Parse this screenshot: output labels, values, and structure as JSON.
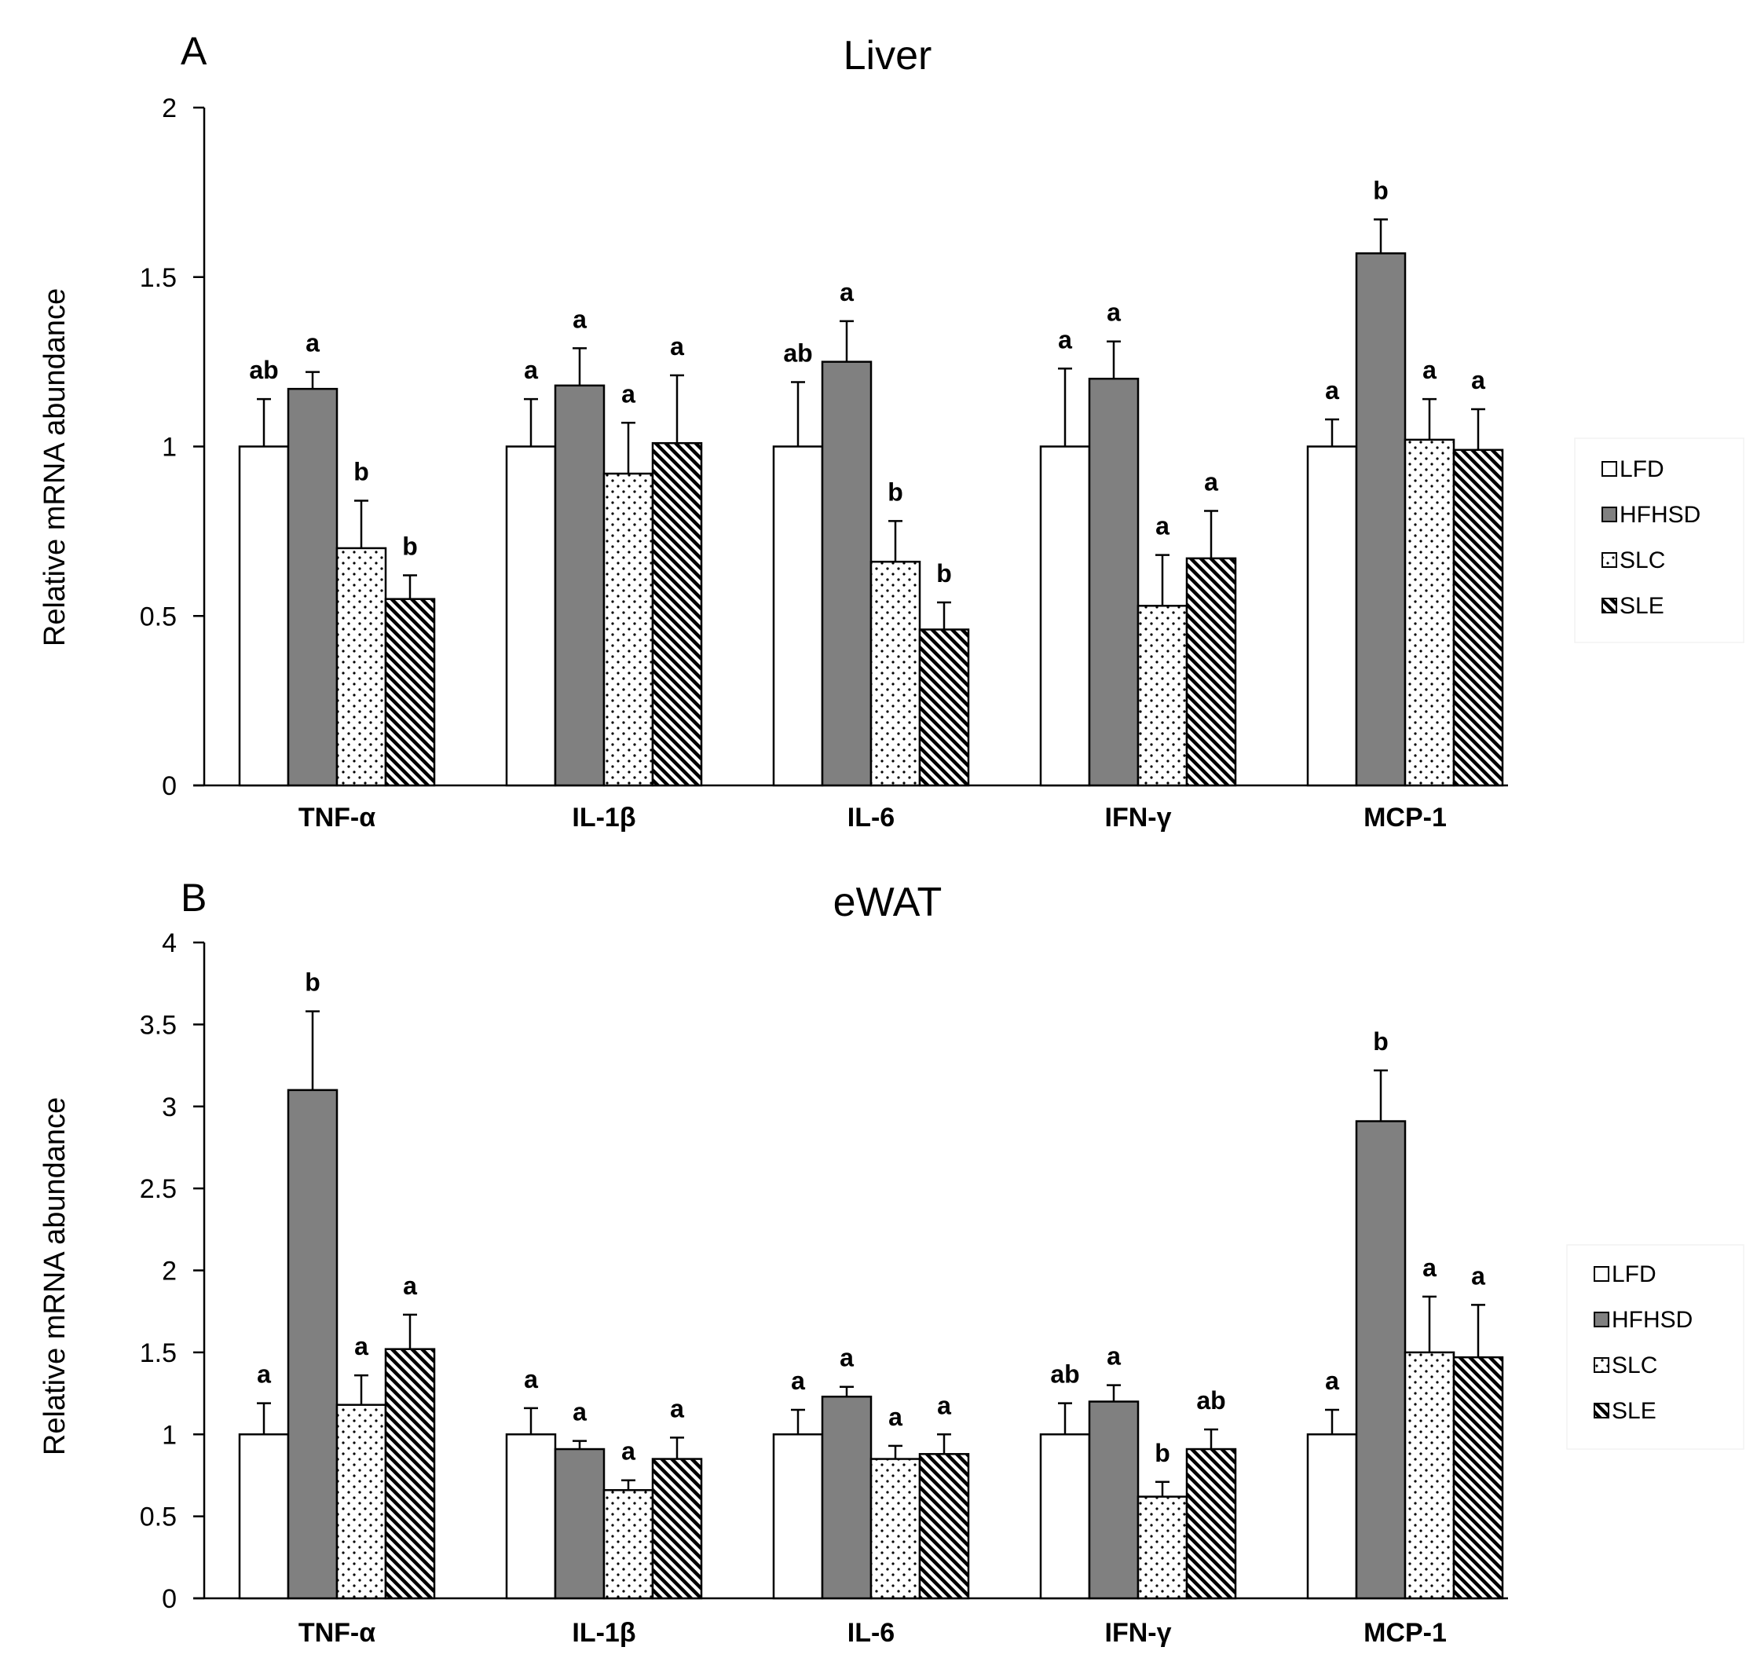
{
  "colors": {
    "LFD": "#ffffff",
    "HFHSD": "#808080",
    "SLC": "#ffffff",
    "SLE": "#ffffff",
    "stroke": "#000000"
  },
  "legend": [
    {
      "name": "LFD",
      "label": "LFD",
      "pattern": "none"
    },
    {
      "name": "HFHSD",
      "label": "HFHSD",
      "pattern": "solid-gray"
    },
    {
      "name": "SLC",
      "label": "SLC",
      "pattern": "dots"
    },
    {
      "name": "SLE",
      "label": "SLE",
      "pattern": "diagonal-hatch"
    }
  ],
  "chart_data": [
    {
      "type": "bar",
      "panel": "A",
      "title": "Liver",
      "xlabel": "",
      "ylabel": "Relative mRNA abundance",
      "ylim": [
        0,
        2
      ],
      "yticks": [
        0,
        0.5,
        1,
        1.5,
        2
      ],
      "ytick_labels": [
        "0",
        "0.5",
        "1",
        "1.5",
        "2"
      ],
      "categories": [
        "TNF-α",
        "IL-1β",
        "IL-6",
        "IFN-γ",
        "MCP-1"
      ],
      "series": [
        {
          "name": "LFD",
          "values": [
            1.0,
            1.0,
            1.0,
            1.0,
            1.0
          ],
          "errors": [
            0.14,
            0.14,
            0.19,
            0.23,
            0.08
          ],
          "labels": [
            "ab",
            "a",
            "ab",
            "a",
            "a"
          ]
        },
        {
          "name": "HFHSD",
          "values": [
            1.17,
            1.18,
            1.25,
            1.2,
            1.57
          ],
          "errors": [
            0.05,
            0.11,
            0.12,
            0.11,
            0.1
          ],
          "labels": [
            "a",
            "a",
            "a",
            "a",
            "b"
          ]
        },
        {
          "name": "SLC",
          "values": [
            0.7,
            0.92,
            0.66,
            0.53,
            1.02
          ],
          "errors": [
            0.14,
            0.15,
            0.12,
            0.15,
            0.12
          ],
          "labels": [
            "b",
            "a",
            "b",
            "a",
            "a"
          ]
        },
        {
          "name": "SLE",
          "values": [
            0.55,
            1.01,
            0.46,
            0.67,
            0.99
          ],
          "errors": [
            0.07,
            0.2,
            0.08,
            0.14,
            0.12
          ],
          "labels": [
            "b",
            "a",
            "b",
            "a",
            "a"
          ]
        }
      ]
    },
    {
      "type": "bar",
      "panel": "B",
      "title": "eWAT",
      "xlabel": "",
      "ylabel": "Relative mRNA abundance",
      "ylim": [
        0,
        4
      ],
      "yticks": [
        0,
        0.5,
        1,
        1.5,
        2,
        2.5,
        3,
        3.5,
        4
      ],
      "ytick_labels": [
        "0",
        "0.5",
        "1",
        "1.5",
        "2",
        "2.5",
        "3",
        "3.5",
        "4"
      ],
      "categories": [
        "TNF-α",
        "IL-1β",
        "IL-6",
        "IFN-γ",
        "MCP-1"
      ],
      "series": [
        {
          "name": "LFD",
          "values": [
            1.0,
            1.0,
            1.0,
            1.0,
            1.0
          ],
          "errors": [
            0.19,
            0.16,
            0.15,
            0.19,
            0.15
          ],
          "labels": [
            "a",
            "a",
            "a",
            "ab",
            "a"
          ]
        },
        {
          "name": "HFHSD",
          "values": [
            3.1,
            0.91,
            1.23,
            1.2,
            2.91
          ],
          "errors": [
            0.48,
            0.05,
            0.06,
            0.1,
            0.31
          ],
          "labels": [
            "b",
            "a",
            "a",
            "a",
            "b"
          ]
        },
        {
          "name": "SLC",
          "values": [
            1.18,
            0.66,
            0.85,
            0.62,
            1.5
          ],
          "errors": [
            0.18,
            0.06,
            0.08,
            0.09,
            0.34
          ],
          "labels": [
            "a",
            "a",
            "a",
            "b",
            "a"
          ]
        },
        {
          "name": "SLE",
          "values": [
            1.52,
            0.85,
            0.88,
            0.91,
            1.47
          ],
          "errors": [
            0.21,
            0.13,
            0.12,
            0.12,
            0.32
          ],
          "labels": [
            "a",
            "a",
            "a",
            "ab",
            "a"
          ]
        }
      ]
    }
  ]
}
